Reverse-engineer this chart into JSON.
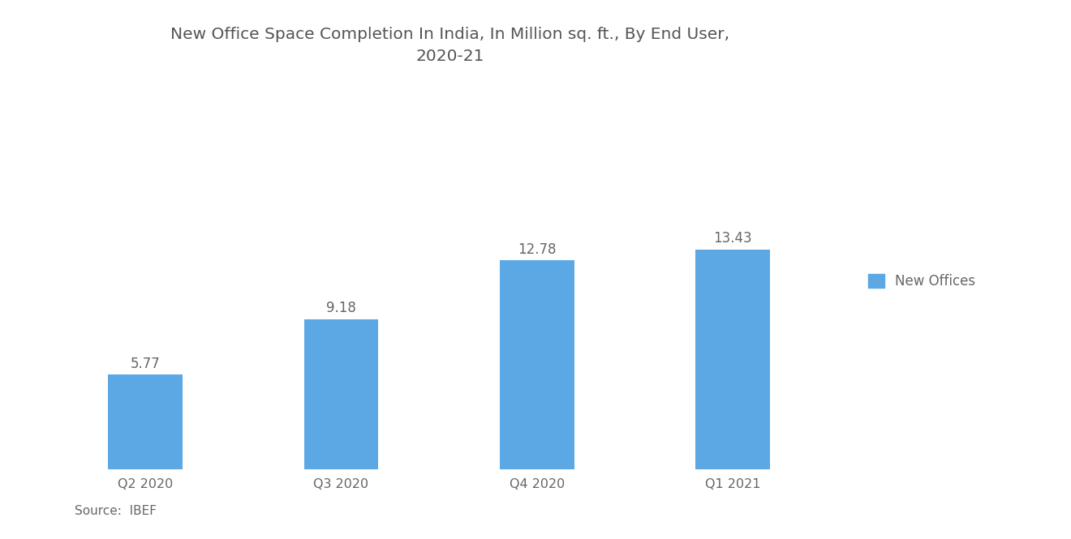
{
  "title": "New Office Space Completion In India, In Million sq. ft., By End User,\n2020-21",
  "categories": [
    "Q2 2020",
    "Q3 2020",
    "Q4 2020",
    "Q1 2021"
  ],
  "values": [
    5.77,
    9.18,
    12.78,
    13.43
  ],
  "bar_color": "#5ba8e5",
  "label_color": "#666666",
  "title_color": "#555555",
  "background_color": "#ffffff",
  "source_text": "Source:  IBEF",
  "legend_label": "New Offices",
  "legend_color": "#5ba8e5",
  "bar_width": 0.38,
  "ylim": [
    0,
    16.5
  ],
  "title_fontsize": 14.5,
  "label_fontsize": 12,
  "tick_fontsize": 11.5,
  "source_fontsize": 11
}
